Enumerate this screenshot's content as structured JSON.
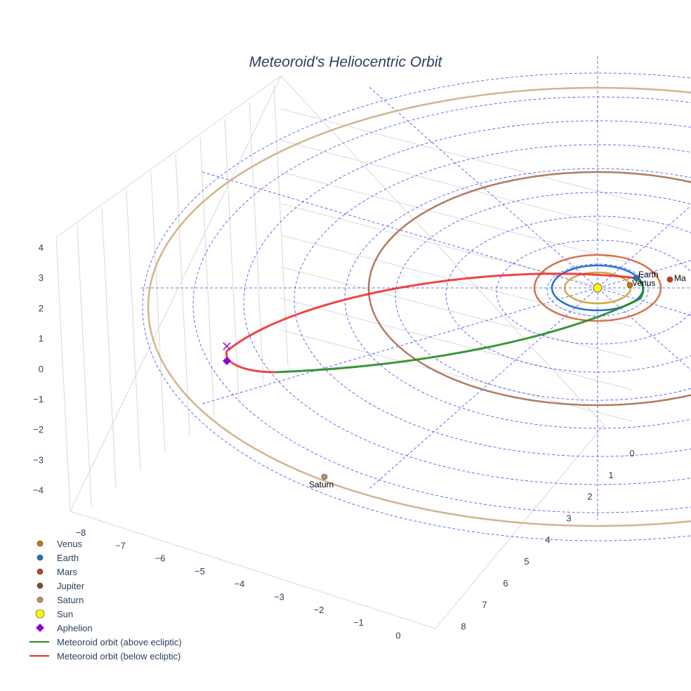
{
  "chart_data": {
    "type": "scatter3d",
    "title": "Meteoroid's Heliocentric Orbit",
    "x_ticks": [
      "−8",
      "−7",
      "−6",
      "−5",
      "−4",
      "−3",
      "−2",
      "−1",
      "0"
    ],
    "y_ticks": [
      "0",
      "1",
      "2",
      "3",
      "4",
      "5",
      "6",
      "7",
      "8"
    ],
    "z_ticks": [
      "4",
      "3",
      "2",
      "1",
      "0",
      "−1",
      "−2",
      "−3",
      "−4"
    ],
    "planets": [
      {
        "name": "Venus",
        "label": "Venus",
        "color": "#c8780a",
        "orbit_color": "#d4a84a",
        "orbit_au": 0.72
      },
      {
        "name": "Earth",
        "label": "Earth",
        "color": "#1f77b4",
        "orbit_color": "#1f6fd0",
        "orbit_au": 1.0
      },
      {
        "name": "Mars",
        "label": "Ma",
        "color": "#c8401a",
        "orbit_color": "#d9704a",
        "orbit_au": 1.52
      },
      {
        "name": "Jupiter",
        "label": "",
        "color": "#8b4a2b",
        "orbit_color": "#b07a60",
        "orbit_au": 5.2
      },
      {
        "name": "Saturn",
        "label": "Saturn",
        "color": "#c09060",
        "orbit_color": "#d2b48c",
        "orbit_au": 9.58
      }
    ],
    "legend": [
      {
        "name": "Venus",
        "symbol": "circle",
        "color": "#c8780a"
      },
      {
        "name": "Earth",
        "symbol": "circle",
        "color": "#1f77b4"
      },
      {
        "name": "Mars",
        "symbol": "circle",
        "color": "#c8401a"
      },
      {
        "name": "Jupiter",
        "symbol": "circle",
        "color": "#8b4a2b"
      },
      {
        "name": "Saturn",
        "symbol": "circle",
        "color": "#c09060"
      },
      {
        "name": "Sun",
        "symbol": "circle",
        "color": "#ffff00"
      },
      {
        "name": "Aphelion",
        "symbol": "diamond",
        "color": "#9400d3"
      },
      {
        "name": "Meteoroid orbit (above ecliptic)",
        "symbol": "line",
        "color": "#228b22"
      },
      {
        "name": "Meteoroid orbit (below ecliptic)",
        "symbol": "line",
        "color": "#ee2222"
      }
    ],
    "legend_position": "bottom-left"
  }
}
